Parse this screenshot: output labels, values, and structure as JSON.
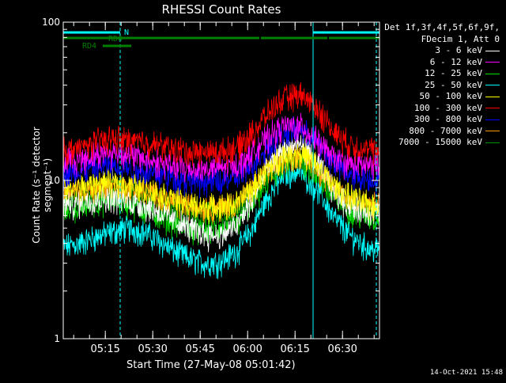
{
  "chart_data": {
    "type": "line",
    "title": "RHESSI Count Rates",
    "xlabel": "Start Time (27-May-08 05:01:42)",
    "ylabel": "Count Rate (s⁻¹ detector segment⁻¹)",
    "yscale": "log",
    "ylim": [
      1,
      100
    ],
    "xlim_minutes": [
      0,
      100
    ],
    "x_ticks": [
      {
        "label": "05:15",
        "t": 13.3
      },
      {
        "label": "05:30",
        "t": 28.3
      },
      {
        "label": "05:45",
        "t": 43.3
      },
      {
        "label": "06:00",
        "t": 58.3
      },
      {
        "label": "06:15",
        "t": 73.3
      },
      {
        "label": "06:30",
        "t": 88.3
      }
    ],
    "y_ticks": [
      {
        "label": "1",
        "v": 1
      },
      {
        "label": "10",
        "v": 10
      },
      {
        "label": "100",
        "v": 100
      }
    ],
    "time_points_min": [
      0,
      5,
      10,
      15,
      20,
      25,
      30,
      35,
      40,
      45,
      50,
      55,
      60,
      65,
      70,
      75,
      80,
      85,
      90,
      95,
      97
    ],
    "series": [
      {
        "name": "3 - 6 keV",
        "color": "#ffffff",
        "values": [
          7.0,
          7.2,
          7.6,
          7.8,
          7.5,
          7.0,
          6.4,
          5.6,
          5.0,
          4.6,
          4.5,
          5.2,
          7.5,
          12,
          16,
          17,
          13,
          9,
          7,
          6.5,
          6.3
        ]
      },
      {
        "name": "6 - 12 keV",
        "color": "#ff00ff",
        "values": [
          13.5,
          13.6,
          14.5,
          15,
          14.8,
          13.8,
          13.0,
          12.2,
          11.8,
          11.8,
          12.0,
          12.5,
          15,
          19,
          22,
          22,
          18,
          14,
          12.8,
          12.5,
          12.3
        ]
      },
      {
        "name": "12 - 25 keV",
        "color": "#00e000",
        "values": [
          6.5,
          6.8,
          7.2,
          7.6,
          7.2,
          6.6,
          6.0,
          5.4,
          5.0,
          4.8,
          4.9,
          5.4,
          7.2,
          10,
          13,
          13.5,
          11,
          8,
          6.6,
          6.0,
          5.8
        ]
      },
      {
        "name": "25 - 50 keV",
        "color": "#00ffff",
        "values": [
          3.8,
          4.0,
          4.4,
          4.7,
          5.0,
          4.8,
          4.2,
          3.6,
          3.2,
          3.0,
          3.1,
          3.6,
          5.0,
          8.0,
          11,
          11.5,
          9,
          6,
          4.6,
          3.9,
          3.7
        ]
      },
      {
        "name": "50 - 100 keV",
        "color": "#ffff00",
        "values": [
          8.8,
          9.0,
          9.5,
          9.8,
          9.5,
          9.0,
          8.3,
          7.6,
          7.0,
          6.8,
          6.8,
          7.2,
          9.0,
          12,
          14.5,
          15,
          12.5,
          9.5,
          8.0,
          7.3,
          7.0
        ]
      },
      {
        "name": "100 - 300 keV",
        "color": "#ff0000",
        "values": [
          15.5,
          16,
          17.5,
          18.5,
          18.0,
          17.5,
          16.8,
          15.8,
          15.2,
          15.0,
          15.2,
          16.2,
          20,
          27,
          33,
          35,
          29,
          21,
          17,
          16,
          15.5
        ]
      },
      {
        "name": "300 - 800 keV",
        "color": "#0000ff",
        "values": [
          11,
          11.4,
          12,
          12.5,
          12.2,
          11.6,
          11.0,
          10.4,
          10.0,
          9.8,
          9.9,
          10.4,
          12.5,
          16.5,
          20,
          21,
          17.5,
          13.2,
          11,
          10.4,
          10.2
        ]
      },
      {
        "name": "800 - 7000 keV",
        "color": "#ff9900",
        "values": [
          8.2,
          8.5,
          8.9,
          9.2,
          9.0,
          8.6,
          8.0,
          7.4,
          6.9,
          6.7,
          6.8,
          7.2,
          8.8,
          11.5,
          14,
          14.5,
          12,
          9.2,
          7.8,
          7.2,
          7.0
        ]
      },
      {
        "name": "7000 - 15000 keV",
        "color": "#009000",
        "values": [
          7.6,
          7.9,
          8.3,
          8.6,
          8.4,
          7.9,
          7.3,
          6.7,
          6.3,
          6.1,
          6.2,
          6.6,
          8.2,
          10.8,
          13.2,
          13.8,
          11.4,
          8.6,
          7.3,
          6.7,
          6.5
        ]
      }
    ],
    "attenuator_bars": [
      {
        "label": "N",
        "color": "#00ffff",
        "segments": [
          [
            0,
            18
          ],
          [
            79,
            100
          ]
        ]
      },
      {
        "label": "RD0",
        "color": "#008000",
        "segments": [
          [
            0,
            62
          ],
          [
            62.5,
            83.5
          ],
          [
            84,
            100
          ]
        ]
      },
      {
        "label": "RD4",
        "color": "#008000",
        "segments": [
          [
            12.5,
            21.5
          ]
        ]
      }
    ],
    "vertical_lines": [
      {
        "t": 18,
        "color": "#00ffff",
        "style": "dashed"
      },
      {
        "t": 79,
        "color": "#00ffff",
        "style": "solid"
      },
      {
        "t": 99,
        "color": "#00ffff",
        "style": "dashed"
      }
    ]
  },
  "legend": {
    "header_line1": "Det 1f,3f,4f,5f,6f,9f,",
    "header_line2": "FDecim 1, Att 0"
  },
  "footer": {
    "date": "14-Oct-2021 15:48"
  }
}
